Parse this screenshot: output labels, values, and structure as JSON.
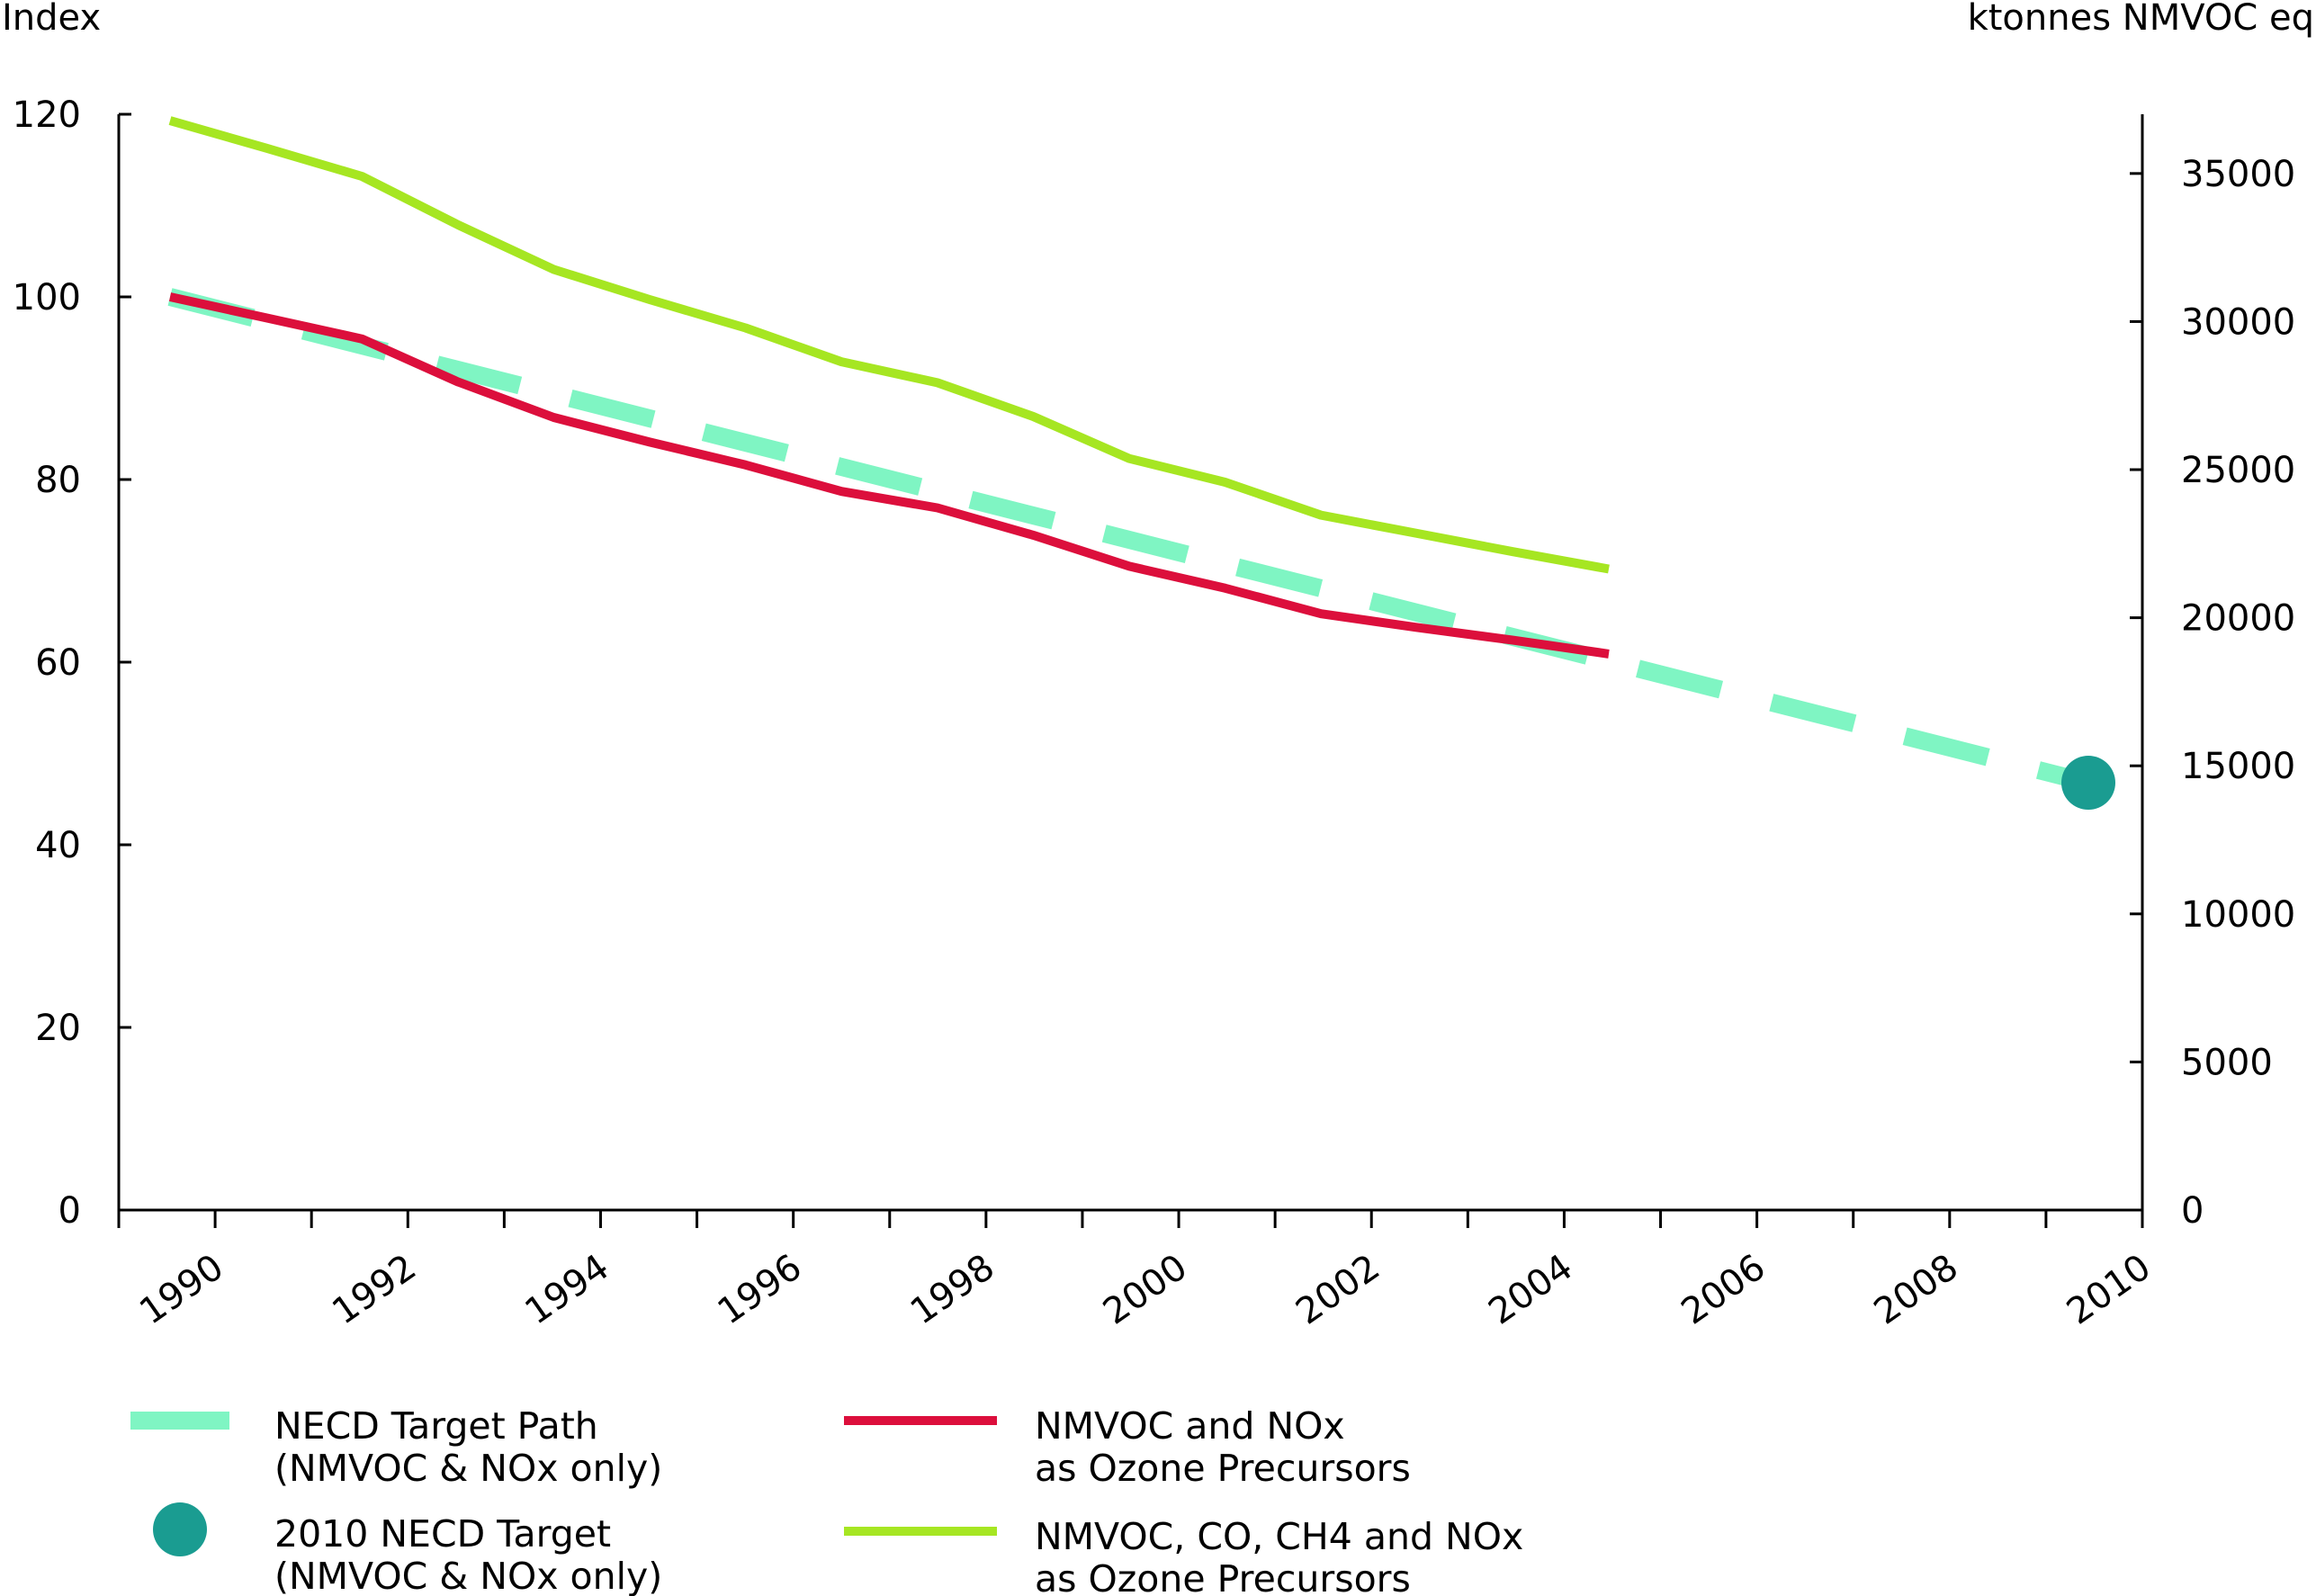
{
  "chart_data": {
    "type": "line",
    "left_axis": {
      "label": "Index",
      "ylim": [
        0,
        120
      ],
      "ticks": [
        0,
        20,
        40,
        60,
        80,
        100,
        120
      ]
    },
    "right_axis": {
      "label": "ktonnes NMVOC eq",
      "ylim": [
        0,
        37000
      ],
      "ticks": [
        0,
        5000,
        10000,
        15000,
        20000,
        25000,
        30000,
        35000
      ]
    },
    "x_ticks": [
      "1990",
      "1992",
      "1994",
      "1996",
      "1998",
      "2000",
      "2002",
      "2004",
      "2006",
      "2008",
      "2010"
    ],
    "series": [
      {
        "name": "NECD Target Path (NMVOC & NOx only)",
        "name_lines": [
          "NECD Target Path",
          "(NMVOC & NOx only)"
        ],
        "style": "dashed",
        "color": "#7ff5c3",
        "x": [
          1990,
          2010
        ],
        "y": [
          100,
          46.8
        ]
      },
      {
        "name": "NMVOC and NOx as Ozone Precursors",
        "name_lines": [
          "NMVOC and NOx",
          "as Ozone Precursors"
        ],
        "style": "solid",
        "color": "#dc0f3c",
        "x": [
          1990,
          1991,
          1992,
          1993,
          1994,
          1995,
          1996,
          1997,
          1998,
          1999,
          2000,
          2001,
          2002,
          2003,
          2004,
          2005
        ],
        "y": [
          100,
          97.7,
          95.4,
          90.7,
          86.8,
          84.1,
          81.6,
          78.7,
          76.9,
          73.9,
          70.5,
          68.1,
          65.3,
          63.8,
          62.4,
          60.9
        ]
      },
      {
        "name": "NMVOC, CO, CH4 and NOx as Ozone Precursors",
        "name_lines": [
          "NMVOC, CO, CH4 and NOx",
          "as Ozone Precursors"
        ],
        "style": "solid",
        "color": "#a6e622",
        "x": [
          1990,
          1991,
          1992,
          1993,
          1994,
          1995,
          1996,
          1997,
          1998,
          1999,
          2000,
          2001,
          2002,
          2003,
          2004,
          2005
        ],
        "y": [
          119.3,
          116.3,
          113.2,
          107.9,
          103.0,
          99.7,
          96.6,
          92.9,
          90.6,
          86.9,
          82.3,
          79.7,
          76.1,
          74.1,
          72.1,
          70.2
        ]
      }
    ],
    "target_point": {
      "name": "2010 NECD Target (NMVOC & NOx only)",
      "name_lines": [
        "2010 NECD Target",
        "(NMVOC & NOx only)"
      ],
      "x": 2010,
      "y": 46.8,
      "color": "#1a9c91"
    },
    "grid": false,
    "legend_position": "bottom"
  }
}
